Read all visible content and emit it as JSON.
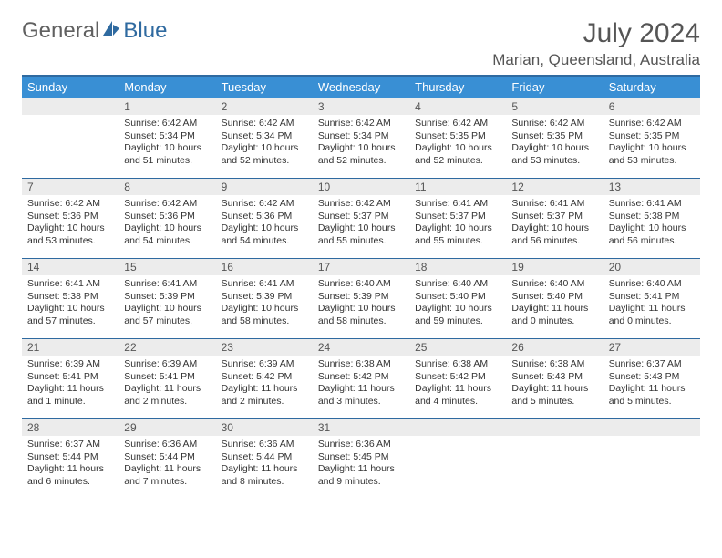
{
  "logo": {
    "text1": "General",
    "text2": "Blue",
    "color1": "#606060",
    "color2": "#2f6aa0"
  },
  "title": "July 2024",
  "location": "Marian, Queensland, Australia",
  "weekdays": [
    "Sunday",
    "Monday",
    "Tuesday",
    "Wednesday",
    "Thursday",
    "Friday",
    "Saturday"
  ],
  "header_bg": "#398fd4",
  "rule_color": "#2f6aa0",
  "daynum_bg": "#ececec",
  "text_color": "#333333",
  "font_size_day": 10.5,
  "first_weekday_offset": 1,
  "days": [
    {
      "n": 1,
      "sr": "6:42 AM",
      "ss": "5:34 PM",
      "dl": "10 hours and 51 minutes."
    },
    {
      "n": 2,
      "sr": "6:42 AM",
      "ss": "5:34 PM",
      "dl": "10 hours and 52 minutes."
    },
    {
      "n": 3,
      "sr": "6:42 AM",
      "ss": "5:34 PM",
      "dl": "10 hours and 52 minutes."
    },
    {
      "n": 4,
      "sr": "6:42 AM",
      "ss": "5:35 PM",
      "dl": "10 hours and 52 minutes."
    },
    {
      "n": 5,
      "sr": "6:42 AM",
      "ss": "5:35 PM",
      "dl": "10 hours and 53 minutes."
    },
    {
      "n": 6,
      "sr": "6:42 AM",
      "ss": "5:35 PM",
      "dl": "10 hours and 53 minutes."
    },
    {
      "n": 7,
      "sr": "6:42 AM",
      "ss": "5:36 PM",
      "dl": "10 hours and 53 minutes."
    },
    {
      "n": 8,
      "sr": "6:42 AM",
      "ss": "5:36 PM",
      "dl": "10 hours and 54 minutes."
    },
    {
      "n": 9,
      "sr": "6:42 AM",
      "ss": "5:36 PM",
      "dl": "10 hours and 54 minutes."
    },
    {
      "n": 10,
      "sr": "6:42 AM",
      "ss": "5:37 PM",
      "dl": "10 hours and 55 minutes."
    },
    {
      "n": 11,
      "sr": "6:41 AM",
      "ss": "5:37 PM",
      "dl": "10 hours and 55 minutes."
    },
    {
      "n": 12,
      "sr": "6:41 AM",
      "ss": "5:37 PM",
      "dl": "10 hours and 56 minutes."
    },
    {
      "n": 13,
      "sr": "6:41 AM",
      "ss": "5:38 PM",
      "dl": "10 hours and 56 minutes."
    },
    {
      "n": 14,
      "sr": "6:41 AM",
      "ss": "5:38 PM",
      "dl": "10 hours and 57 minutes."
    },
    {
      "n": 15,
      "sr": "6:41 AM",
      "ss": "5:39 PM",
      "dl": "10 hours and 57 minutes."
    },
    {
      "n": 16,
      "sr": "6:41 AM",
      "ss": "5:39 PM",
      "dl": "10 hours and 58 minutes."
    },
    {
      "n": 17,
      "sr": "6:40 AM",
      "ss": "5:39 PM",
      "dl": "10 hours and 58 minutes."
    },
    {
      "n": 18,
      "sr": "6:40 AM",
      "ss": "5:40 PM",
      "dl": "10 hours and 59 minutes."
    },
    {
      "n": 19,
      "sr": "6:40 AM",
      "ss": "5:40 PM",
      "dl": "11 hours and 0 minutes."
    },
    {
      "n": 20,
      "sr": "6:40 AM",
      "ss": "5:41 PM",
      "dl": "11 hours and 0 minutes."
    },
    {
      "n": 21,
      "sr": "6:39 AM",
      "ss": "5:41 PM",
      "dl": "11 hours and 1 minute."
    },
    {
      "n": 22,
      "sr": "6:39 AM",
      "ss": "5:41 PM",
      "dl": "11 hours and 2 minutes."
    },
    {
      "n": 23,
      "sr": "6:39 AM",
      "ss": "5:42 PM",
      "dl": "11 hours and 2 minutes."
    },
    {
      "n": 24,
      "sr": "6:38 AM",
      "ss": "5:42 PM",
      "dl": "11 hours and 3 minutes."
    },
    {
      "n": 25,
      "sr": "6:38 AM",
      "ss": "5:42 PM",
      "dl": "11 hours and 4 minutes."
    },
    {
      "n": 26,
      "sr": "6:38 AM",
      "ss": "5:43 PM",
      "dl": "11 hours and 5 minutes."
    },
    {
      "n": 27,
      "sr": "6:37 AM",
      "ss": "5:43 PM",
      "dl": "11 hours and 5 minutes."
    },
    {
      "n": 28,
      "sr": "6:37 AM",
      "ss": "5:44 PM",
      "dl": "11 hours and 6 minutes."
    },
    {
      "n": 29,
      "sr": "6:36 AM",
      "ss": "5:44 PM",
      "dl": "11 hours and 7 minutes."
    },
    {
      "n": 30,
      "sr": "6:36 AM",
      "ss": "5:44 PM",
      "dl": "11 hours and 8 minutes."
    },
    {
      "n": 31,
      "sr": "6:36 AM",
      "ss": "5:45 PM",
      "dl": "11 hours and 9 minutes."
    }
  ],
  "labels": {
    "sunrise": "Sunrise:",
    "sunset": "Sunset:",
    "daylight": "Daylight:"
  }
}
